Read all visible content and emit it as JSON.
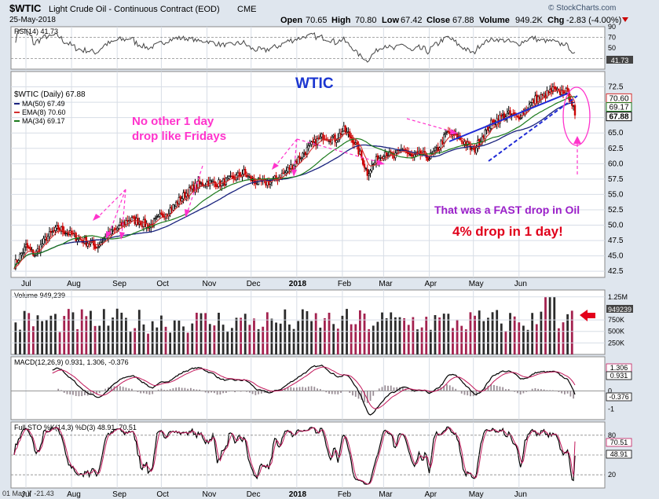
{
  "header": {
    "symbol": "$WTIC",
    "description": "Light Crude Oil - Continuous Contract (EOD)",
    "exchange": "CME",
    "date": "25-May-2018",
    "open_label": "Open",
    "open": "70.65",
    "high_label": "High",
    "high": "70.80",
    "low_label": "Low",
    "low": "67.42",
    "close_label": "Close",
    "close": "67.88",
    "volume_label": "Volume",
    "volume": "949.2K",
    "chg_label": "Chg",
    "chg": "-2.83 (-4.00%)",
    "watermark": "© StockCharts.com"
  },
  "colors": {
    "panel_bg": "#ffffff",
    "page_bg": "#dfe6ee",
    "grid": "#d7dde6",
    "up": "#000000",
    "down": "#cc0000",
    "ma50": "#1a237e",
    "ema8": "#d32f2f",
    "ma34": "#1b7a1b",
    "vol_up": "#2b2b2b",
    "vol_down": "#a3224f",
    "annotation_magenta": "#ff33cc",
    "annotation_blue": "#1f2ad6",
    "annotation_red": "#e0001b",
    "annotation_purple": "#9b20c9",
    "title_blue": "#1a35d0"
  },
  "annotations": {
    "wtic_title": "WTIC",
    "friday_note_line1": "No other 1 day",
    "friday_note_line2": "drop like Fridays",
    "fast_drop": "That was a FAST drop in Oil",
    "pct_drop": "4% drop in 1 day!"
  },
  "chart_data": [
    {
      "panel": "rsi",
      "type": "line",
      "title": "RSI(14) 41.73",
      "series": [
        {
          "name": "RSI(14)",
          "last": 41.73
        }
      ],
      "ylim": [
        10,
        90
      ],
      "yticks": [
        90,
        70,
        50,
        30
      ],
      "reference_lines": [
        70,
        30
      ],
      "last_label": "41.73"
    },
    {
      "panel": "price",
      "type": "candlestick",
      "legend_title": "$WTIC (Daily) 67.88",
      "legend": [
        {
          "name": "MA(50) 67.49",
          "key": "ma50"
        },
        {
          "name": "EMA(8) 70.60",
          "key": "ema8"
        },
        {
          "name": "MA(34) 69.17",
          "key": "ma34"
        }
      ],
      "ylim": [
        41.5,
        75
      ],
      "yticks": [
        "72.5",
        "70.0",
        "67.5",
        "65.0",
        "62.5",
        "60.0",
        "57.5",
        "55.0",
        "52.5",
        "50.0",
        "47.5",
        "45.0",
        "42.5"
      ],
      "right_labels": [
        "70.60",
        "69.17",
        "67.88"
      ],
      "x_labels": [
        "Jul",
        "Aug",
        "Sep",
        "Oct",
        "Nov",
        "Dec",
        "2018",
        "Feb",
        "Mar",
        "Apr",
        "May",
        "Jun"
      ],
      "close_points": [
        {
          "d": 0,
          "v": 43.5
        },
        {
          "d": 8,
          "v": 46.5
        },
        {
          "d": 14,
          "v": 45.2
        },
        {
          "d": 22,
          "v": 48.0
        },
        {
          "d": 30,
          "v": 49.5
        },
        {
          "d": 36,
          "v": 48.8
        },
        {
          "d": 44,
          "v": 47.8
        },
        {
          "d": 50,
          "v": 47.2
        },
        {
          "d": 56,
          "v": 46.5
        },
        {
          "d": 62,
          "v": 48.0
        },
        {
          "d": 70,
          "v": 49.5
        },
        {
          "d": 78,
          "v": 51.0
        },
        {
          "d": 86,
          "v": 50.5
        },
        {
          "d": 92,
          "v": 49.8
        },
        {
          "d": 100,
          "v": 51.5
        },
        {
          "d": 108,
          "v": 53.0
        },
        {
          "d": 116,
          "v": 55.0
        },
        {
          "d": 124,
          "v": 56.5
        },
        {
          "d": 132,
          "v": 57.0
        },
        {
          "d": 140,
          "v": 56.8
        },
        {
          "d": 148,
          "v": 57.5
        },
        {
          "d": 156,
          "v": 58.5
        },
        {
          "d": 162,
          "v": 57.2
        },
        {
          "d": 170,
          "v": 56.8
        },
        {
          "d": 178,
          "v": 57.5
        },
        {
          "d": 186,
          "v": 59.0
        },
        {
          "d": 194,
          "v": 61.0
        },
        {
          "d": 202,
          "v": 63.0
        },
        {
          "d": 210,
          "v": 64.5
        },
        {
          "d": 218,
          "v": 64.0
        },
        {
          "d": 224,
          "v": 65.5
        },
        {
          "d": 230,
          "v": 64.0
        },
        {
          "d": 236,
          "v": 61.0
        },
        {
          "d": 240,
          "v": 58.5
        },
        {
          "d": 246,
          "v": 60.5
        },
        {
          "d": 252,
          "v": 62.0
        },
        {
          "d": 258,
          "v": 61.0
        },
        {
          "d": 264,
          "v": 62.5
        },
        {
          "d": 270,
          "v": 61.0
        },
        {
          "d": 276,
          "v": 61.5
        },
        {
          "d": 282,
          "v": 61.0
        },
        {
          "d": 288,
          "v": 62.5
        },
        {
          "d": 294,
          "v": 65.0
        },
        {
          "d": 300,
          "v": 64.5
        },
        {
          "d": 306,
          "v": 63.5
        },
        {
          "d": 312,
          "v": 62.0
        },
        {
          "d": 318,
          "v": 64.5
        },
        {
          "d": 324,
          "v": 66.5
        },
        {
          "d": 330,
          "v": 67.5
        },
        {
          "d": 336,
          "v": 68.0
        },
        {
          "d": 342,
          "v": 67.5
        },
        {
          "d": 348,
          "v": 69.0
        },
        {
          "d": 354,
          "v": 70.5
        },
        {
          "d": 360,
          "v": 71.0
        },
        {
          "d": 366,
          "v": 72.0
        },
        {
          "d": 370,
          "v": 71.5
        },
        {
          "d": 374,
          "v": 72.0
        },
        {
          "d": 378,
          "v": 70.7
        },
        {
          "d": 381,
          "v": 67.9
        }
      ]
    },
    {
      "panel": "volume",
      "type": "bar",
      "title": "Volume 949,239",
      "yticks": [
        "1.25M",
        "750K",
        "500K",
        "250K"
      ],
      "last_label": "949239"
    },
    {
      "panel": "macd",
      "type": "line",
      "title": "MACD(12,26,9) 0.931, 1.306, -0.376",
      "series": [
        {
          "name": "MACD(12,26,9)",
          "last": 0.931
        },
        {
          "name": "Signal",
          "last": 1.306
        },
        {
          "name": "Histogram",
          "last": -0.376
        }
      ],
      "yticks": [
        "1",
        "0",
        "-1"
      ],
      "right_labels": [
        "1.306",
        "0.931",
        "-0.376"
      ]
    },
    {
      "panel": "stochastic",
      "type": "line",
      "title": "Full STO %K(14,3) %D(3) 48.91, 70.51",
      "series": [
        {
          "name": "%K(14,3)",
          "last": 48.91
        },
        {
          "name": "%D(3)",
          "last": 70.51
        }
      ],
      "yticks": [
        "80",
        "50",
        "20"
      ],
      "right_labels": [
        "70.51",
        "48.91"
      ]
    }
  ],
  "footer": {
    "note": "01 May Y -21.43"
  }
}
